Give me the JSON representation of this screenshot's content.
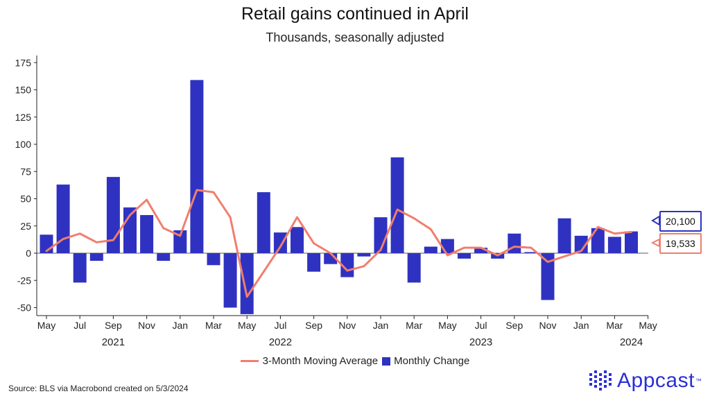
{
  "title": "Retail gains continued in April",
  "subtitle": "Thousands, seasonally adjusted",
  "source": "Source: BLS via Macrobond created on 5/3/2024",
  "logo_text": "Appcast",
  "logo_tm": "™",
  "colors": {
    "bar": "#2f32c0",
    "line": "#f07e6e",
    "brand": "#2b2fd6"
  },
  "chart_data": {
    "type": "bar",
    "title": "Retail gains continued in April",
    "subtitle": "Thousands, seasonally adjusted",
    "ylim": [
      -55,
      180
    ],
    "yticks": [
      175,
      150,
      125,
      100,
      75,
      50,
      25,
      0,
      -25,
      -50
    ],
    "x_tick_labels": [
      "May",
      "Jul",
      "Sep",
      "Nov",
      "Jan",
      "Mar",
      "May",
      "Jul",
      "Sep",
      "Nov",
      "Jan",
      "Mar",
      "May",
      "Jul",
      "Sep",
      "Nov",
      "Jan",
      "Mar",
      "May"
    ],
    "year_labels": [
      {
        "label": "2021",
        "month_index": 4
      },
      {
        "label": "2022",
        "month_index": 14
      },
      {
        "label": "2023",
        "month_index": 26
      },
      {
        "label": "2024",
        "month_index": 35
      }
    ],
    "categories": [
      "2021-05",
      "2021-06",
      "2021-07",
      "2021-08",
      "2021-09",
      "2021-10",
      "2021-11",
      "2021-12",
      "2022-01",
      "2022-02",
      "2022-03",
      "2022-04",
      "2022-05",
      "2022-06",
      "2022-07",
      "2022-08",
      "2022-09",
      "2022-10",
      "2022-11",
      "2022-12",
      "2023-01",
      "2023-02",
      "2023-03",
      "2023-04",
      "2023-05",
      "2023-06",
      "2023-07",
      "2023-08",
      "2023-09",
      "2023-10",
      "2023-11",
      "2023-12",
      "2024-01",
      "2024-02",
      "2024-03",
      "2024-04"
    ],
    "series": [
      {
        "name": "Monthly Change",
        "type": "bar",
        "values": [
          17,
          63,
          -27,
          -7,
          70,
          42,
          35,
          -7,
          21,
          159,
          -11,
          -50,
          -56,
          56,
          19,
          24,
          -17,
          -10,
          -22,
          -3,
          33,
          88,
          -27,
          6,
          13,
          -5,
          5,
          -5,
          18,
          1,
          -43,
          32,
          16,
          23,
          15,
          20
        ]
      },
      {
        "name": "3-Month Moving Average",
        "type": "line",
        "values": [
          2,
          13,
          18,
          10,
          12,
          35,
          49,
          23,
          16,
          58,
          56,
          33,
          -40,
          -17,
          6,
          33,
          9,
          0,
          -16,
          -12,
          3,
          40,
          32,
          22,
          -2,
          5,
          5,
          -2,
          6,
          5,
          -8,
          -3,
          2,
          24,
          18,
          19.5
        ]
      }
    ],
    "callouts": [
      {
        "series": "Monthly Change",
        "label": "20,100"
      },
      {
        "series": "3-Month Moving Average",
        "label": "19,533"
      }
    ],
    "legend": [
      "3-Month Moving Average",
      "Monthly Change"
    ]
  }
}
